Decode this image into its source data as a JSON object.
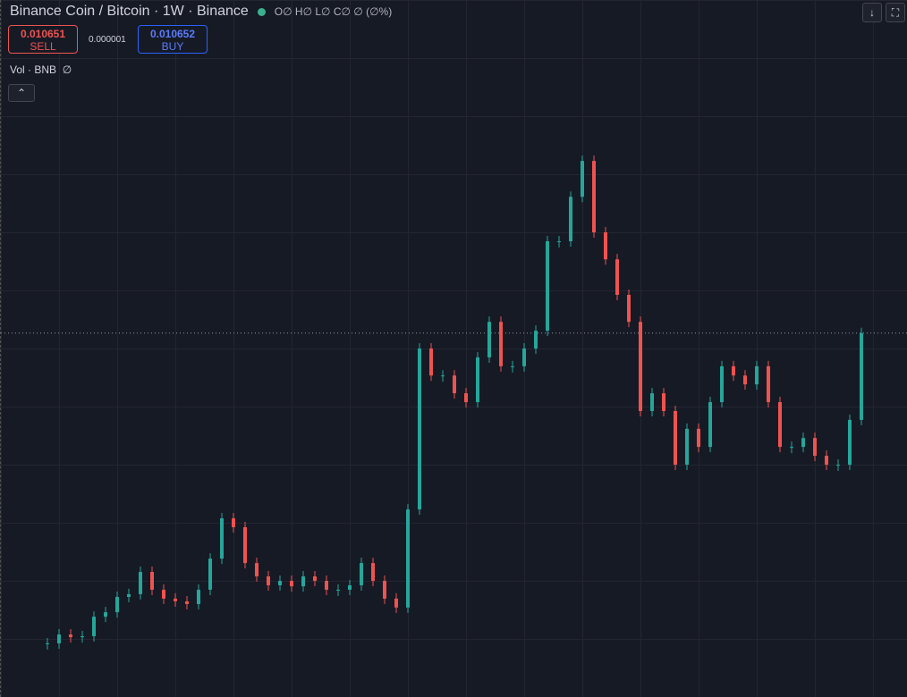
{
  "header": {
    "symbol": "Binance Coin / Bitcoin · 1W · Binance",
    "ohlc": "O∅ H∅ L∅ C∅ ∅ (∅%)"
  },
  "trade": {
    "sell_price": "0.010651",
    "sell_label": "SELL",
    "spread": "0.000001",
    "buy_price": "0.010652",
    "buy_label": "BUY"
  },
  "indicator": {
    "label": "Vol · BNB",
    "value": "∅"
  },
  "chart": {
    "type": "candlestick",
    "ylim": [
      0,
      0.0204
    ],
    "close": [
      0.00157,
      0.00183,
      0.00175,
      0.00178,
      0.00235,
      0.00248,
      0.00293,
      0.00301,
      0.00366,
      0.00314,
      0.00288,
      0.0028,
      0.00272,
      0.00314,
      0.00405,
      0.00523,
      0.00497,
      0.00392,
      0.00353,
      0.00327,
      0.0034,
      0.00324,
      0.00353,
      0.0034,
      0.00314,
      0.00314,
      0.00327,
      0.00392,
      0.0034,
      0.00288,
      0.00262,
      0.00549,
      0.0102,
      0.00941,
      0.00941,
      0.00889,
      0.00863,
      0.00994,
      0.01098,
      0.00968,
      0.00968,
      0.0102,
      0.01072,
      0.01334,
      0.01334,
      0.01464,
      0.01569,
      0.0136,
      0.01281,
      0.01177,
      0.01098,
      0.00837,
      0.00889,
      0.00837,
      0.0068,
      0.00785,
      0.00732,
      0.00863,
      0.00968,
      0.00941,
      0.00915,
      0.00968,
      0.00863,
      0.00732,
      0.00732,
      0.00758,
      0.00706,
      0.0068,
      0.0068,
      0.00811,
      0.010651
    ],
    "up_color": "#26a69a",
    "down_color": "#ef5350"
  }
}
